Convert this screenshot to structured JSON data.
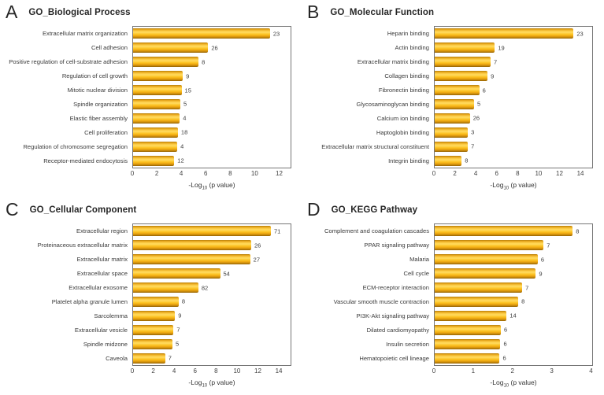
{
  "style": {
    "bar_gold_main": "#fdc526",
    "bar_gold_light": "#ffda5e",
    "bar_gold_dark": "#8f5f04",
    "plot_border": "#767676",
    "text_dark": "#262626",
    "text_label": "#3b3b3b",
    "text_tick": "#404040"
  },
  "chart_data": [
    {
      "panel_letter": "A",
      "type": "bar",
      "orientation": "horizontal",
      "title": "GO_Biological Process",
      "xlabel": "-Log10 (p value)",
      "xlabel_parts": {
        "pre": "-Log",
        "sub": "10",
        "post": " (p value)"
      },
      "xticks": [
        0,
        2,
        4,
        6,
        8,
        10,
        12
      ],
      "xlim": [
        0,
        13
      ],
      "grid": false,
      "legend": "none",
      "categories": [
        "Extracellular matrix organization",
        "Cell adhesion",
        "Positive regulation of cell-substrate adhesion",
        "Regulation of cell growth",
        "Mitotic nuclear division",
        "Spindle organization",
        "Elastic fiber assembly",
        "Cell proliferation",
        "Regulation of chromosome segregation",
        "Receptor-mediated endocytosis"
      ],
      "values": [
        11.3,
        6.2,
        5.4,
        4.1,
        4.0,
        3.9,
        3.85,
        3.7,
        3.65,
        3.4
      ],
      "bar_labels": [
        23,
        26,
        8,
        9,
        15,
        5,
        4,
        18,
        4,
        12
      ]
    },
    {
      "panel_letter": "B",
      "type": "bar",
      "orientation": "horizontal",
      "title": "GO_Molecular Function",
      "xlabel": "-Log10 (p value)",
      "xlabel_parts": {
        "pre": "-Log",
        "sub": "10",
        "post": " (p value)"
      },
      "xticks": [
        0,
        2,
        4,
        6,
        8,
        10,
        12,
        14
      ],
      "xlim": [
        0,
        15.2
      ],
      "grid": false,
      "legend": "none",
      "categories": [
        "Heparin binding",
        "Actin binding",
        "Extracellular matrix binding",
        "Collagen binding",
        "Fibronectin binding",
        "Glycosaminoglycan binding",
        "Calcium ion binding",
        "Haptoglobin binding",
        "Extracellular matrix structural constituent",
        "Integrin binding"
      ],
      "values": [
        13.4,
        5.8,
        5.4,
        5.1,
        4.3,
        3.8,
        3.4,
        3.2,
        3.2,
        2.6
      ],
      "bar_labels": [
        23,
        19,
        7,
        9,
        6,
        5,
        26,
        3,
        7,
        8
      ]
    },
    {
      "panel_letter": "C",
      "type": "bar",
      "orientation": "horizontal",
      "title": "GO_Cellular Component",
      "xlabel": "-Log10 (p value)",
      "xlabel_parts": {
        "pre": "-Log",
        "sub": "10",
        "post": " (p value)"
      },
      "xticks": [
        0,
        2,
        4,
        6,
        8,
        10,
        12,
        14
      ],
      "xlim": [
        0,
        15.2
      ],
      "grid": false,
      "legend": "none",
      "categories": [
        "Extracellular region",
        "Proteinaceous extracellular matrix",
        "Extracellular matrix",
        "Extracellular space",
        "Extracellular exosome",
        "Platelet alpha granule lumen",
        "Sarcolemma",
        "Extracellular vesicle",
        "Spindle midzone",
        "Caveola"
      ],
      "values": [
        13.3,
        11.4,
        11.3,
        8.4,
        6.3,
        4.4,
        4.05,
        3.9,
        3.8,
        3.1
      ],
      "bar_labels": [
        71,
        26,
        27,
        54,
        82,
        8,
        9,
        7,
        5,
        7
      ]
    },
    {
      "panel_letter": "D",
      "type": "bar",
      "orientation": "horizontal",
      "title": "GO_KEGG Pathway",
      "xlabel": "-Log10 (p value)",
      "xlabel_parts": {
        "pre": "-Log",
        "sub": "10",
        "post": " (p value)"
      },
      "xticks": [
        0,
        1,
        2,
        3,
        4
      ],
      "xlim": [
        0,
        4.05
      ],
      "grid": false,
      "legend": "none",
      "categories": [
        "Complement and coagulation cascades",
        "PPAR signaling pathway",
        "Malaria",
        "Cell cycle",
        "ECM-receptor interaction",
        "Vascular smooth muscle contraction",
        "PI3K-Akt signaling pathway",
        "Dilated cardiomyopathy",
        "Insulin secretion",
        "Hematopoietic cell lineage"
      ],
      "values": [
        3.55,
        2.8,
        2.65,
        2.6,
        2.25,
        2.15,
        1.85,
        1.7,
        1.69,
        1.67
      ],
      "bar_labels": [
        8,
        7,
        6,
        9,
        7,
        8,
        14,
        6,
        6,
        6
      ]
    }
  ]
}
